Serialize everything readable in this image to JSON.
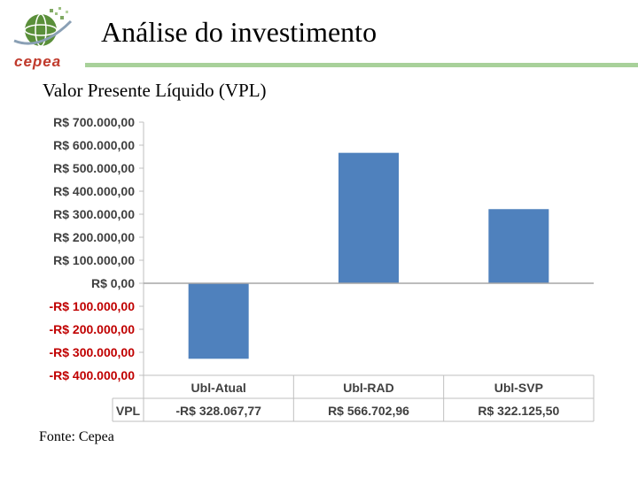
{
  "header": {
    "title": "Análise do investimento",
    "subtitle": "Valor Presente Líquido (VPL)",
    "logo_text": "cepea"
  },
  "colors": {
    "bar": "#4f81bd",
    "negative_label": "#c00000",
    "rule": "#a8d19a",
    "grid": "#bfbfbf"
  },
  "footer": {
    "source": "Fonte: Cepea"
  },
  "chart_data": {
    "type": "bar",
    "categories": [
      "Ubl-Atual",
      "Ubl-RAD",
      "Ubl-SVP"
    ],
    "series": [
      {
        "name": "VPL",
        "values": [
          -328067.77,
          566702.96,
          322125.5
        ]
      }
    ],
    "value_labels": [
      "-R$ 328.067,77",
      "R$ 566.702,96",
      "R$ 322.125,50"
    ],
    "yticks": [
      700000,
      600000,
      500000,
      400000,
      300000,
      200000,
      100000,
      0,
      -100000,
      -200000,
      -300000,
      -400000
    ],
    "ytick_labels": [
      "R$ 700.000,00",
      "R$ 600.000,00",
      "R$ 500.000,00",
      "R$ 400.000,00",
      "R$ 300.000,00",
      "R$ 200.000,00",
      "R$ 100.000,00",
      "R$ 0,00",
      "-R$ 100.000,00",
      "-R$ 200.000,00",
      "-R$ 300.000,00",
      "-R$ 400.000,00"
    ],
    "ylim": [
      -400000,
      700000
    ],
    "data_table": true,
    "grid": false,
    "legend": "none"
  }
}
